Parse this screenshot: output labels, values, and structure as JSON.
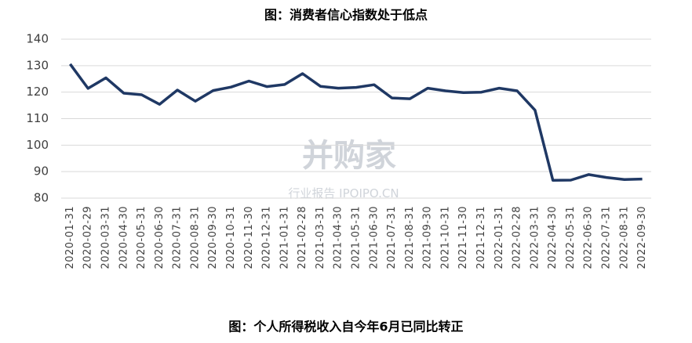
{
  "chart_data": {
    "type": "line",
    "title": "图：消费者信心指数处于低点",
    "caption": "图：个人所得税收入自今年6月已同比转正",
    "watermark": "并购家",
    "watermark_sub": "行业报告 IPOIPO.CN",
    "categories": [
      "2020-01-31",
      "2020-02-29",
      "2020-03-31",
      "2020-04-30",
      "2020-05-31",
      "2020-06-30",
      "2020-07-31",
      "2020-08-31",
      "2020-09-30",
      "2020-10-31",
      "2020-11-30",
      "2020-12-31",
      "2021-01-31",
      "2021-02-28",
      "2021-03-31",
      "2021-04-30",
      "2021-05-31",
      "2021-06-30",
      "2021-07-31",
      "2021-08-31",
      "2021-09-30",
      "2021-10-31",
      "2021-11-30",
      "2021-12-31",
      "2022-01-31",
      "2022-02-28",
      "2022-03-31",
      "2022-04-30",
      "2022-05-31",
      "2022-06-30",
      "2022-07-31",
      "2022-08-31",
      "2022-09-30"
    ],
    "values": [
      130.6,
      121.4,
      125.4,
      119.6,
      119.0,
      115.4,
      120.8,
      116.6,
      120.6,
      121.9,
      124.2,
      122.1,
      122.9,
      127.0,
      122.2,
      121.5,
      121.8,
      122.8,
      117.8,
      117.5,
      121.5,
      120.5,
      119.8,
      120.0,
      121.5,
      120.5,
      113.2,
      86.7,
      86.8,
      88.9,
      87.8,
      87.0,
      87.2
    ],
    "color": "#1f3864",
    "ylim": [
      80,
      140
    ],
    "yticks": [
      80,
      90,
      100,
      110,
      120,
      130,
      140
    ],
    "grid": true
  }
}
